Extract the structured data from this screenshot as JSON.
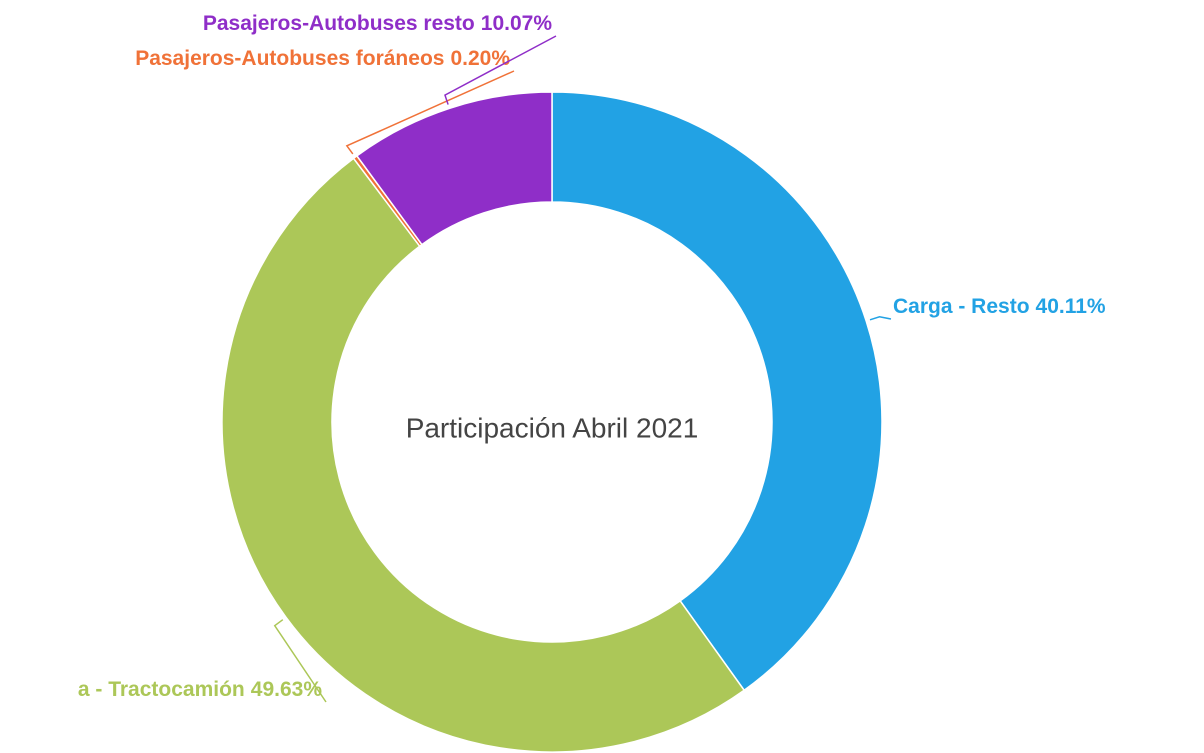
{
  "chart_data": {
    "type": "donut",
    "center_label": "Participación Abril 2021",
    "categories": [
      "Carga - Resto",
      "a - Tractocamión",
      "Pasajeros-Autobuses foráneos",
      "Pasajeros-Autobuses resto"
    ],
    "values": [
      40.11,
      49.63,
      0.2,
      10.07
    ],
    "value_labels": [
      "40.11%",
      "49.63%",
      "0.20%",
      "10.07%"
    ],
    "colors": [
      "#22a2e4",
      "#acc758",
      "#f07238",
      "#8f2ec8"
    ]
  }
}
